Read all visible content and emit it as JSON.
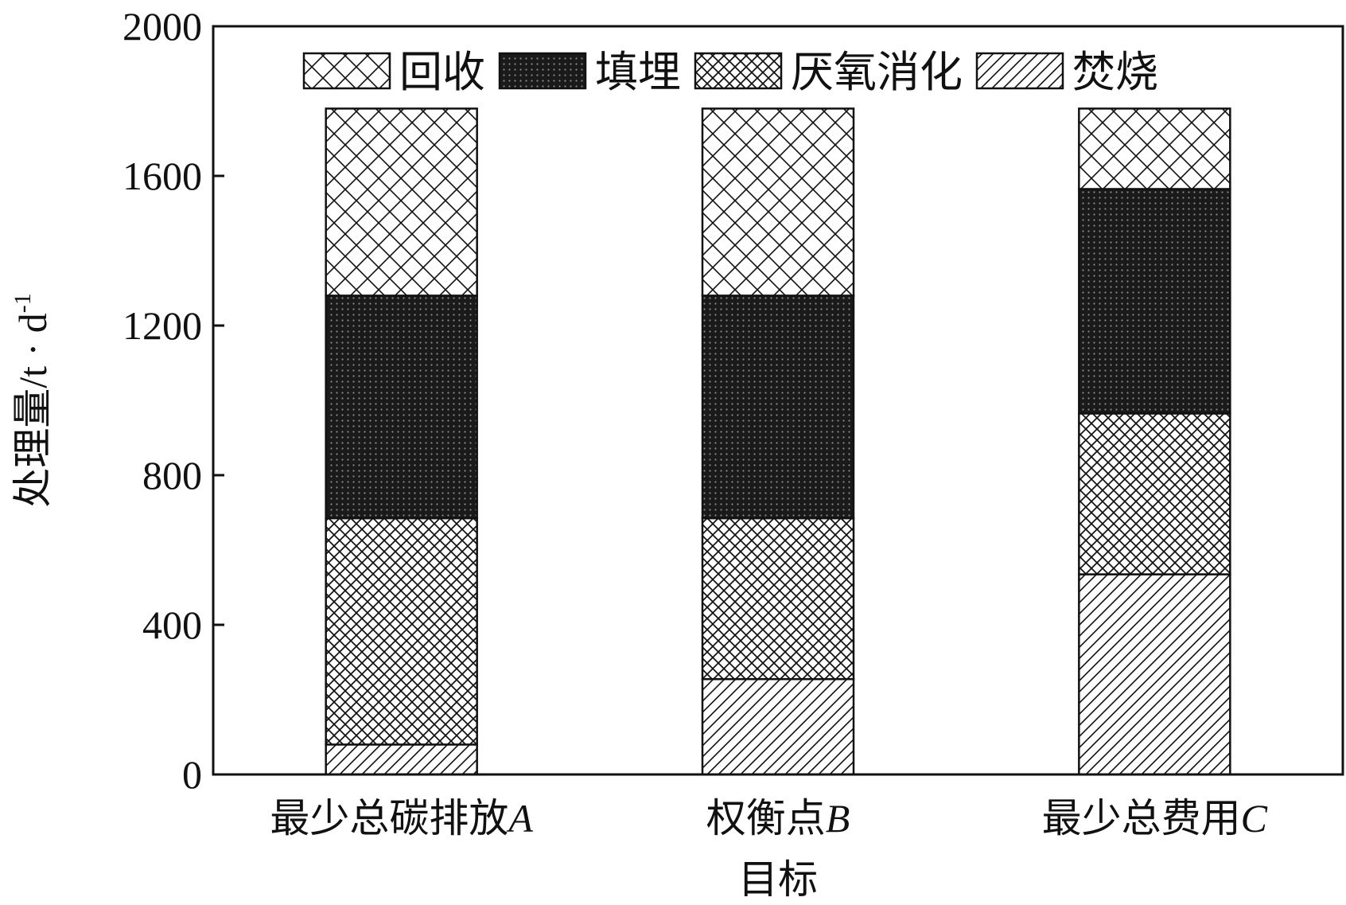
{
  "chart_data": {
    "type": "bar",
    "stacked": true,
    "categories": [
      {
        "label": "最少总碳排放",
        "letter": "A"
      },
      {
        "label": "权衡点",
        "letter": "B"
      },
      {
        "label": "最少总费用",
        "letter": "C"
      }
    ],
    "series": [
      {
        "name": "焚烧",
        "pattern": "diagonal",
        "values": [
          80,
          255,
          535
        ]
      },
      {
        "name": "厌氧消化",
        "pattern": "fine-crosshatch",
        "values": [
          605,
          430,
          430
        ]
      },
      {
        "name": "填埋",
        "pattern": "dense-dark",
        "values": [
          595,
          595,
          600
        ]
      },
      {
        "name": "回收",
        "pattern": "crosshatch",
        "values": [
          500,
          500,
          215
        ]
      }
    ],
    "legend_order": [
      "回收",
      "填埋",
      "厌氧消化",
      "焚烧"
    ],
    "legend_position": "top",
    "xlabel": "目标",
    "ylabel": {
      "main": "处理量",
      "unit": "/t · d",
      "sup": "-1"
    },
    "ylim": [
      0,
      2000
    ],
    "yticks": [
      0,
      400,
      800,
      1200,
      1600,
      2000
    ],
    "grid": false,
    "colors": {
      "stroke": "#111111",
      "background": "#ffffff"
    }
  }
}
